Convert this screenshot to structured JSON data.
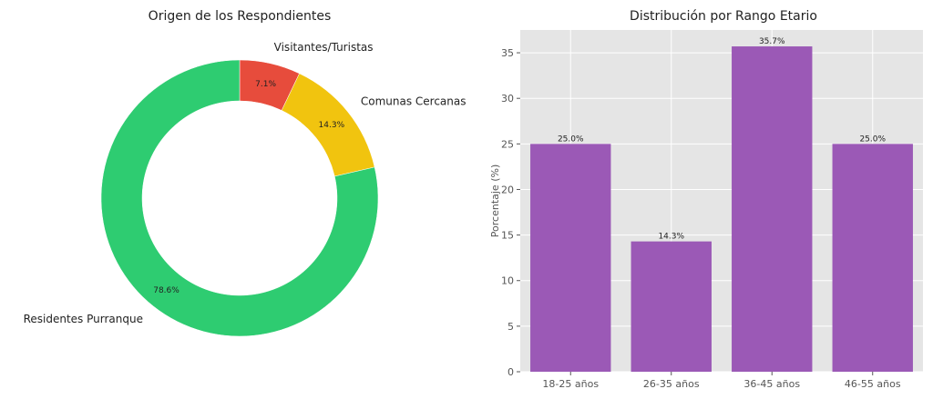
{
  "chart_data": [
    {
      "type": "pie",
      "title": "Origen de los Respondientes",
      "style": "donut",
      "slices": [
        {
          "label": "Visitantes/Turistas",
          "value": 7.1,
          "pct_label": "7.1%",
          "color": "#e74c3c"
        },
        {
          "label": "Comunas Cercanas",
          "value": 14.3,
          "pct_label": "14.3%",
          "color": "#f1c40f"
        },
        {
          "label": "Residentes Purranque",
          "value": 78.6,
          "pct_label": "78.6%",
          "color": "#2ecc71"
        }
      ]
    },
    {
      "type": "bar",
      "title": "Distribución por Rango Etario",
      "categories": [
        "18-25 años",
        "26-35 años",
        "36-45 años",
        "46-55 años"
      ],
      "values": [
        25.0,
        14.3,
        35.7,
        25.0
      ],
      "value_labels": [
        "25.0%",
        "14.3%",
        "35.7%",
        "25.0%"
      ],
      "xlabel": "",
      "ylabel": "Porcentaje (%)",
      "ylim": [
        0,
        37.5
      ],
      "yticks": [
        0,
        5,
        10,
        15,
        20,
        25,
        30,
        35
      ],
      "color": "#9b59b6",
      "grid": true
    }
  ]
}
